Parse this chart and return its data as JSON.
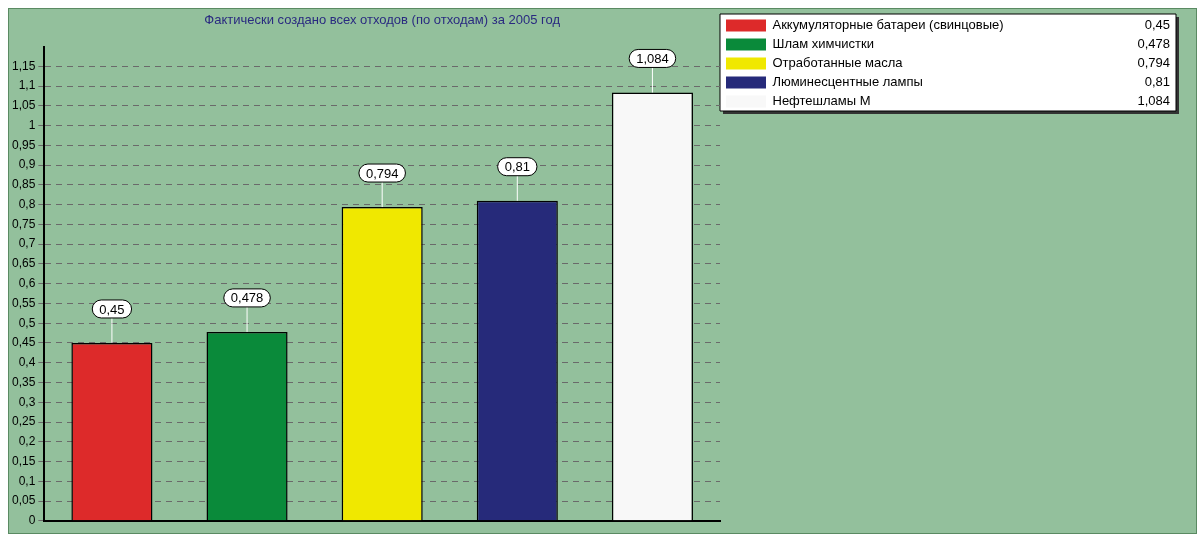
{
  "chart_data": {
    "type": "bar",
    "title": "Фактически создано всех отходов (по отходам) за 2005 год",
    "categories": [
      null,
      null,
      null,
      null,
      null
    ],
    "series": [
      {
        "name": "Аккумуляторные батареи (свинцовые)",
        "color": "#dd2a2a",
        "values": [
          0.45,
          null,
          null,
          null,
          null
        ]
      },
      {
        "name": "Шлам химчистки",
        "color": "#0a8a3a",
        "values": [
          null,
          0.478,
          null,
          null,
          null
        ]
      },
      {
        "name": "Отработанные масла",
        "color": "#f0e800",
        "values": [
          null,
          null,
          0.794,
          null,
          null
        ]
      },
      {
        "name": "Люминесцентные лампы",
        "color": "#262a7a",
        "values": [
          null,
          null,
          null,
          0.81,
          null
        ]
      },
      {
        "name": "Нефтешламы М",
        "color": "#f8f8f8",
        "values": [
          null,
          null,
          null,
          null,
          1.084
        ]
      }
    ],
    "value_labels": [
      "0,45",
      "0,478",
      "0,794",
      "0,81",
      "1,084"
    ],
    "ylim": [
      0,
      1.2
    ],
    "yticks": [
      {
        "value": 0,
        "label": "0"
      },
      {
        "value": 0.05,
        "label": "0,05"
      },
      {
        "value": 0.1,
        "label": "0,1"
      },
      {
        "value": 0.15,
        "label": "0,15"
      },
      {
        "value": 0.2,
        "label": "0,2"
      },
      {
        "value": 0.25,
        "label": "0,25"
      },
      {
        "value": 0.3,
        "label": "0,3"
      },
      {
        "value": 0.35,
        "label": "0,35"
      },
      {
        "value": 0.4,
        "label": "0,4"
      },
      {
        "value": 0.45,
        "label": "0,45"
      },
      {
        "value": 0.5,
        "label": "0,5"
      },
      {
        "value": 0.55,
        "label": "0,55"
      },
      {
        "value": 0.6,
        "label": "0,6"
      },
      {
        "value": 0.65,
        "label": "0,65"
      },
      {
        "value": 0.7,
        "label": "0,7"
      },
      {
        "value": 0.75,
        "label": "0,75"
      },
      {
        "value": 0.8,
        "label": "0,8"
      },
      {
        "value": 0.85,
        "label": "0,85"
      },
      {
        "value": 0.9,
        "label": "0,9"
      },
      {
        "value": 0.95,
        "label": "0,95"
      },
      {
        "value": 1,
        "label": "1"
      },
      {
        "value": 1.05,
        "label": "1,05"
      },
      {
        "value": 1.1,
        "label": "1,1"
      },
      {
        "value": 1.15,
        "label": "1,15"
      }
    ],
    "grid": "y",
    "legend": "top right"
  }
}
